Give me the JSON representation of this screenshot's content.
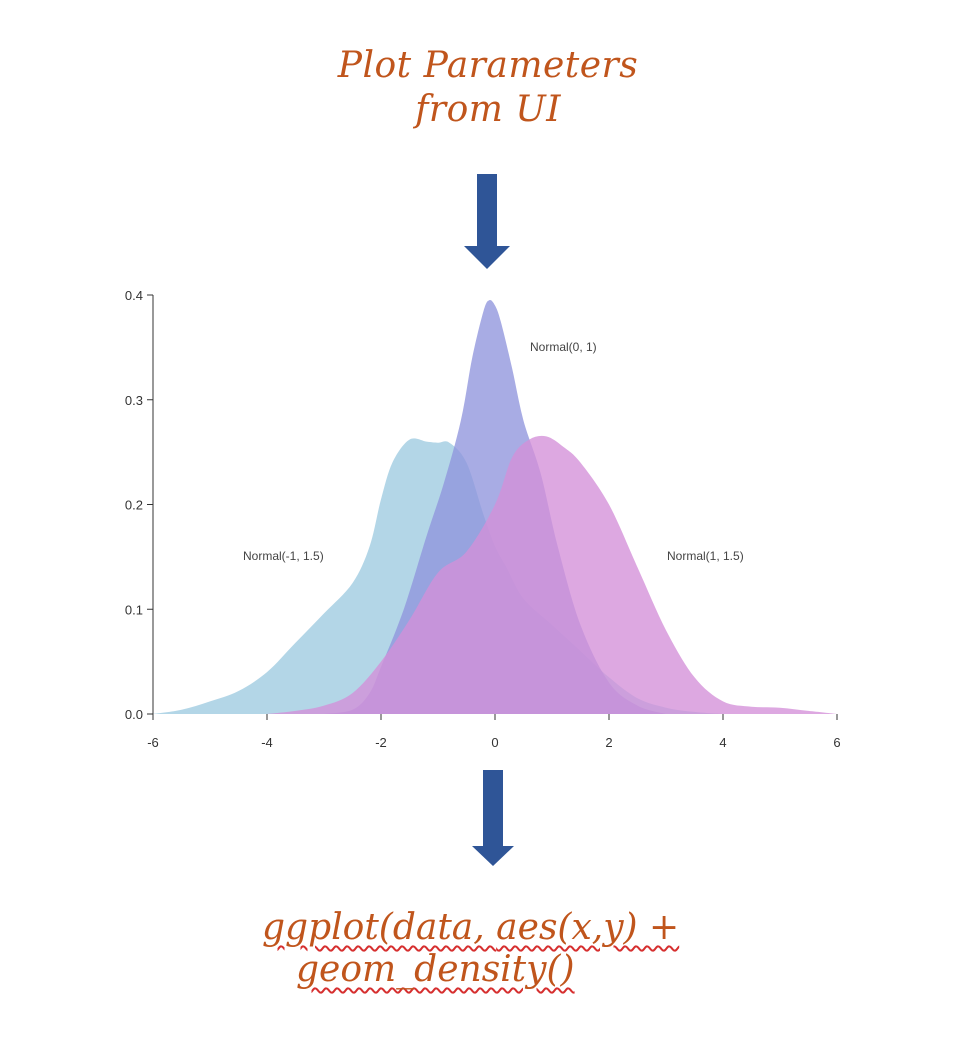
{
  "title": {
    "line1": "Plot Parameters",
    "line2": "from UI"
  },
  "code": {
    "line1_parts": [
      "ggplot(data, ",
      "aes(x,y) +"
    ],
    "line2": "geom_density()"
  },
  "arrows": {
    "color": "#2f5597",
    "top": "arrow-down-icon",
    "bottom": "arrow-down-icon"
  },
  "chart_data": {
    "type": "area",
    "title": "",
    "xlabel": "",
    "ylabel": "",
    "xlim": [
      -6,
      6
    ],
    "ylim": [
      0,
      0.4
    ],
    "x_ticks": [
      "-6",
      "-4",
      "-2",
      "0",
      "2",
      "4",
      "6"
    ],
    "y_ticks": [
      "0.0",
      "0.1",
      "0.2",
      "0.3",
      "0.4"
    ],
    "grid": false,
    "series": [
      {
        "name": "Normal(-1, 1.5)",
        "color": "#9dcbe0",
        "x": [
          -6.0,
          -5.5,
          -5.0,
          -4.5,
          -4.0,
          -3.5,
          -3.0,
          -2.5,
          -2.2,
          -2.0,
          -1.8,
          -1.5,
          -1.2,
          -1.0,
          -0.8,
          -0.5,
          -0.2,
          0.0,
          0.2,
          0.5,
          1.0,
          1.5,
          2.0,
          2.5,
          3.0,
          3.5,
          4.0
        ],
        "y": [
          0.0,
          0.004,
          0.012,
          0.022,
          0.04,
          0.068,
          0.096,
          0.125,
          0.16,
          0.205,
          0.24,
          0.262,
          0.26,
          0.259,
          0.259,
          0.24,
          0.19,
          0.16,
          0.14,
          0.11,
          0.085,
          0.06,
          0.035,
          0.015,
          0.006,
          0.002,
          0.0
        ]
      },
      {
        "name": "Normal(0, 1)",
        "color": "#8f95dc",
        "x": [
          -3.0,
          -2.5,
          -2.2,
          -2.0,
          -1.6,
          -1.2,
          -0.9,
          -0.6,
          -0.4,
          -0.2,
          -0.1,
          0.0,
          0.1,
          0.3,
          0.5,
          0.8,
          1.1,
          1.5,
          2.0,
          2.5,
          3.0
        ],
        "y": [
          0.0,
          0.004,
          0.02,
          0.045,
          0.1,
          0.17,
          0.22,
          0.28,
          0.34,
          0.385,
          0.395,
          0.39,
          0.375,
          0.33,
          0.28,
          0.23,
          0.16,
          0.085,
          0.03,
          0.008,
          0.0
        ]
      },
      {
        "name": "Normal(1, 1.5)",
        "color": "#d48fd8",
        "x": [
          -4.0,
          -3.5,
          -3.0,
          -2.5,
          -2.0,
          -1.5,
          -1.0,
          -0.5,
          0.0,
          0.3,
          0.6,
          0.9,
          1.2,
          1.5,
          2.0,
          2.5,
          3.0,
          3.5,
          4.0,
          4.5,
          5.0,
          5.5,
          6.0
        ],
        "y": [
          0.0,
          0.003,
          0.008,
          0.02,
          0.05,
          0.09,
          0.135,
          0.155,
          0.2,
          0.245,
          0.262,
          0.265,
          0.255,
          0.24,
          0.2,
          0.14,
          0.08,
          0.035,
          0.012,
          0.007,
          0.006,
          0.003,
          0.0
        ]
      }
    ],
    "annotations": [
      "Normal(0, 1)",
      "Normal(-1, 1.5)",
      "Normal(1, 1.5)"
    ]
  }
}
